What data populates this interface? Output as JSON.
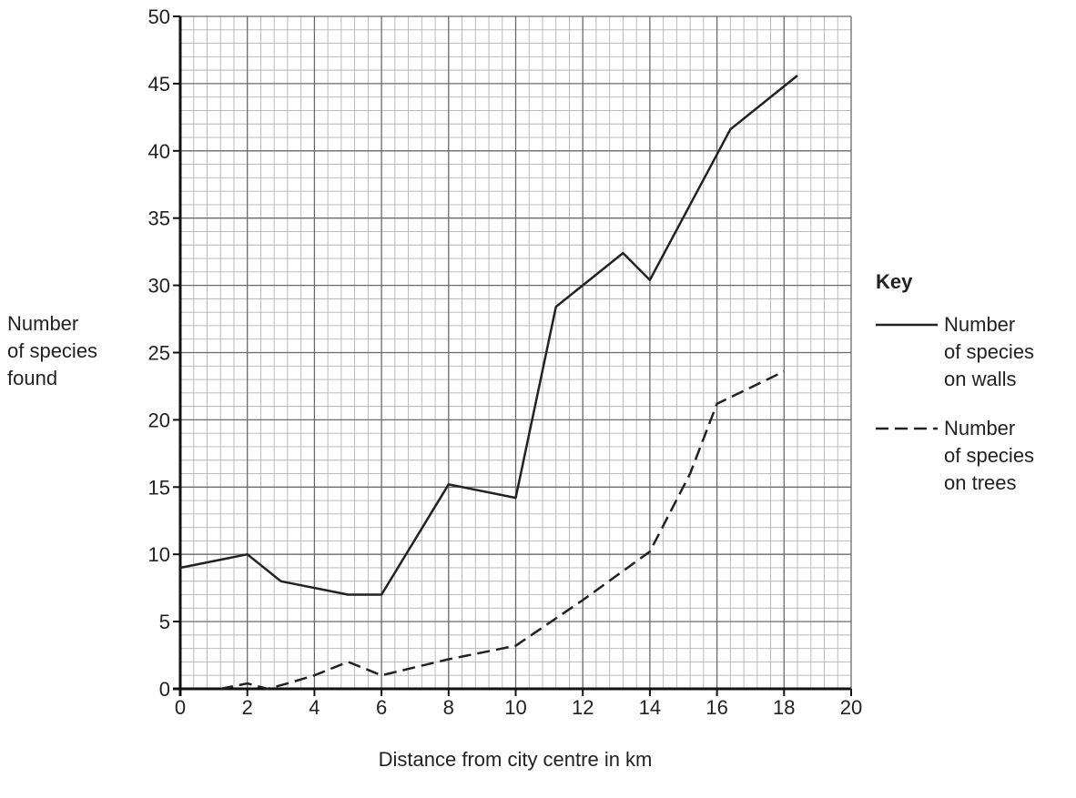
{
  "chart_data": {
    "type": "line",
    "xlabel": "Distance from city centre in km",
    "ylabel": [
      "Number",
      "of species",
      "found"
    ],
    "xlim": [
      0,
      20
    ],
    "ylim": [
      0,
      50
    ],
    "xticks": [
      0,
      2,
      4,
      6,
      8,
      10,
      12,
      14,
      16,
      18,
      20
    ],
    "yticks": [
      0,
      5,
      10,
      15,
      20,
      25,
      30,
      35,
      40,
      45,
      50
    ],
    "grid": "on (minor grid every 0.4 km and 1 species)",
    "legend": {
      "title": "Key",
      "placement": "right",
      "entries": [
        [
          "Number",
          "of species",
          "on walls"
        ],
        [
          "Number",
          "of species",
          "on trees"
        ]
      ]
    },
    "series": [
      {
        "key": "walls",
        "style": "solid",
        "points": [
          [
            0,
            9
          ],
          [
            2,
            10
          ],
          [
            3,
            8
          ],
          [
            5,
            7
          ],
          [
            6,
            7
          ],
          [
            8,
            15.2
          ],
          [
            10,
            14.2
          ],
          [
            11.2,
            28.4
          ],
          [
            13.2,
            32.4
          ],
          [
            14,
            30.4
          ],
          [
            16.4,
            41.6
          ],
          [
            18.4,
            45.6
          ]
        ]
      },
      {
        "key": "trees",
        "style": "dashed",
        "points": [
          [
            1.2,
            0
          ],
          [
            2,
            0.4
          ],
          [
            2.6,
            0
          ],
          [
            3.2,
            0.4
          ],
          [
            4,
            1
          ],
          [
            5,
            2
          ],
          [
            6,
            1
          ],
          [
            8,
            2.2
          ],
          [
            10,
            3.2
          ],
          [
            12,
            6.6
          ],
          [
            14,
            10.2
          ],
          [
            15.2,
            16
          ],
          [
            16,
            21.2
          ],
          [
            18,
            23.6
          ]
        ]
      }
    ]
  }
}
